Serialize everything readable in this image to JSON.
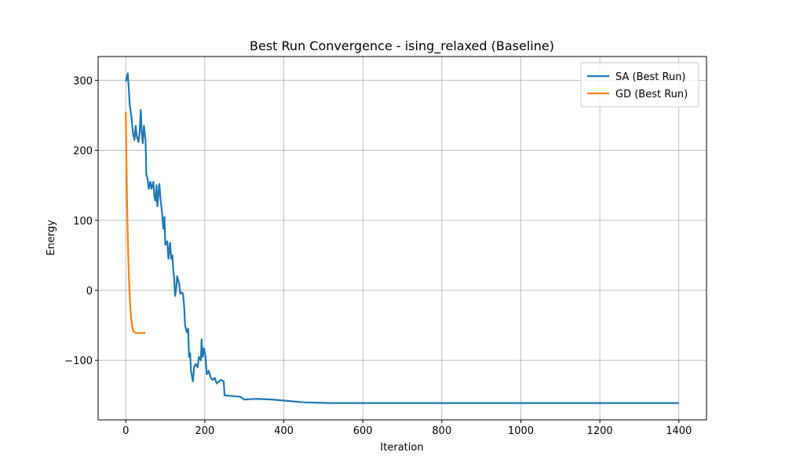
{
  "chart_data": {
    "type": "line",
    "title": "Best Run Convergence - ising_relaxed (Baseline)",
    "x_label": "Iteration",
    "y_label": "Energy",
    "xlim": [
      -70,
      1470
    ],
    "ylim": [
      -185,
      334
    ],
    "xticks": [
      0,
      200,
      400,
      600,
      800,
      1000,
      1200,
      1400
    ],
    "yticks": [
      {
        "value": -100,
        "label": "−100"
      },
      0,
      100,
      200,
      300
    ],
    "grid": true,
    "legend": "upper right",
    "series": [
      {
        "name": "SA (Best Run)",
        "color": "#1f77b4",
        "x": [
          0,
          5,
          8,
          10,
          15,
          18,
          22,
          25,
          28,
          32,
          35,
          38,
          40,
          43,
          46,
          50,
          52,
          55,
          58,
          62,
          65,
          70,
          72,
          75,
          78,
          80,
          85,
          88,
          92,
          95,
          98,
          100,
          105,
          108,
          112,
          115,
          118,
          120,
          122,
          125,
          128,
          130,
          135,
          138,
          142,
          145,
          148,
          150,
          155,
          158,
          160,
          163,
          165,
          170,
          173,
          177,
          182,
          185,
          190,
          192,
          195,
          198,
          202,
          205,
          210,
          215,
          220,
          225,
          230,
          240,
          248,
          250,
          290,
          300,
          330,
          370,
          450,
          520,
          1400
        ],
        "values": [
          298,
          310,
          285,
          265,
          245,
          225,
          215,
          235,
          220,
          212,
          225,
          258,
          230,
          210,
          235,
          215,
          165,
          160,
          145,
          155,
          145,
          155,
          135,
          128,
          150,
          120,
          152,
          130,
          110,
          88,
          105,
          65,
          70,
          45,
          68,
          45,
          50,
          30,
          20,
          -8,
          5,
          20,
          10,
          -5,
          -3,
          -5,
          -25,
          -50,
          -60,
          -55,
          -95,
          -90,
          -115,
          -130,
          -110,
          -105,
          -110,
          -95,
          -100,
          -70,
          -95,
          -83,
          -95,
          -120,
          -115,
          -125,
          -128,
          -125,
          -133,
          -128,
          -130,
          -150,
          -152,
          -156,
          -155,
          -156,
          -160,
          -161,
          -161
        ]
      },
      {
        "name": "GD (Best Run)",
        "color": "#ff7f0e",
        "x": [
          0,
          1,
          2,
          3,
          4,
          5,
          6,
          7,
          8,
          9,
          10,
          12,
          14,
          16,
          18,
          20,
          24,
          30,
          40,
          50
        ],
        "values": [
          255,
          210,
          170,
          135,
          105,
          78,
          55,
          35,
          18,
          4,
          -8,
          -28,
          -42,
          -51,
          -56,
          -59,
          -60.5,
          -61,
          -61,
          -61
        ]
      }
    ]
  }
}
